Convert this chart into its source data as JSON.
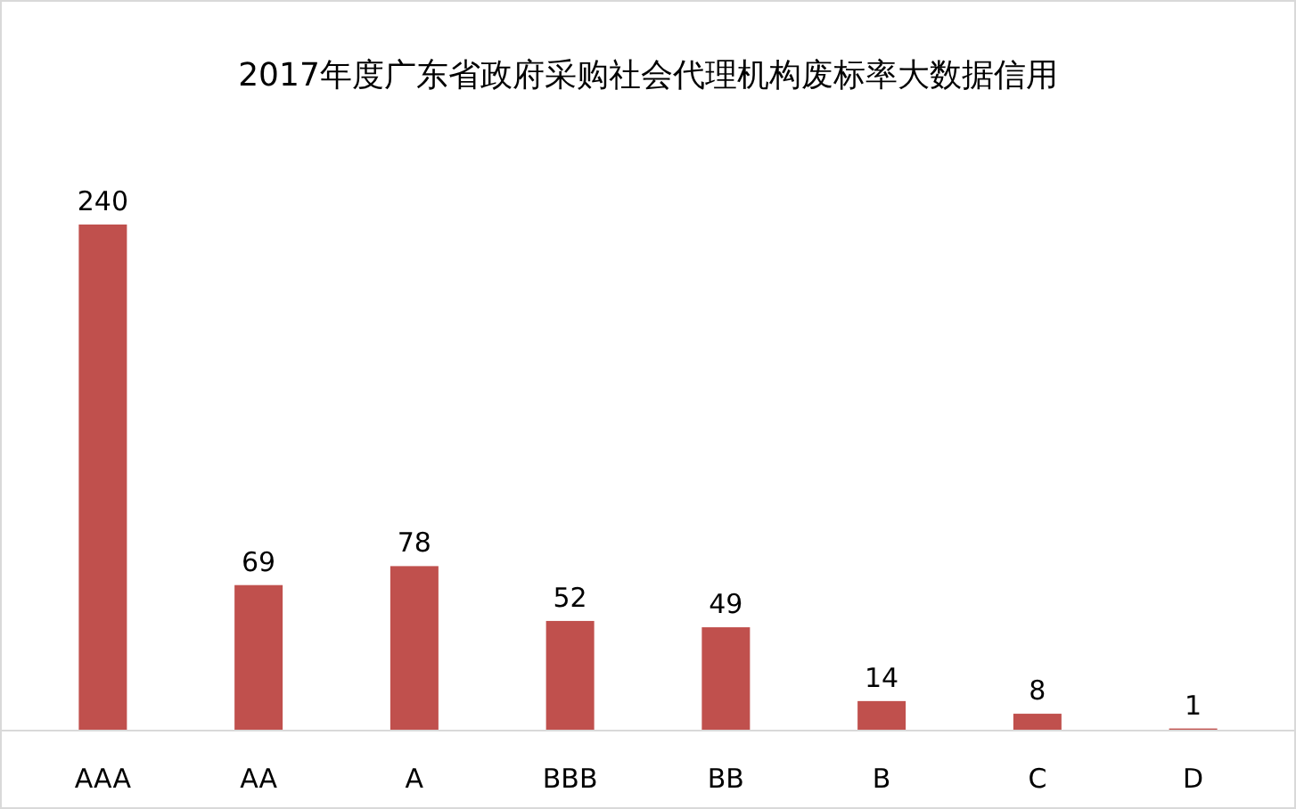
{
  "chart_data": {
    "type": "bar",
    "title": "2017年度广东省政府采购社会代理机构废标率大数据信用",
    "categories": [
      "AAA",
      "AA",
      "A",
      "BBB",
      "BB",
      "B",
      "C",
      "D"
    ],
    "values": [
      240,
      69,
      78,
      52,
      49,
      14,
      8,
      1
    ],
    "color": "#c0504d",
    "data_labels": true
  }
}
